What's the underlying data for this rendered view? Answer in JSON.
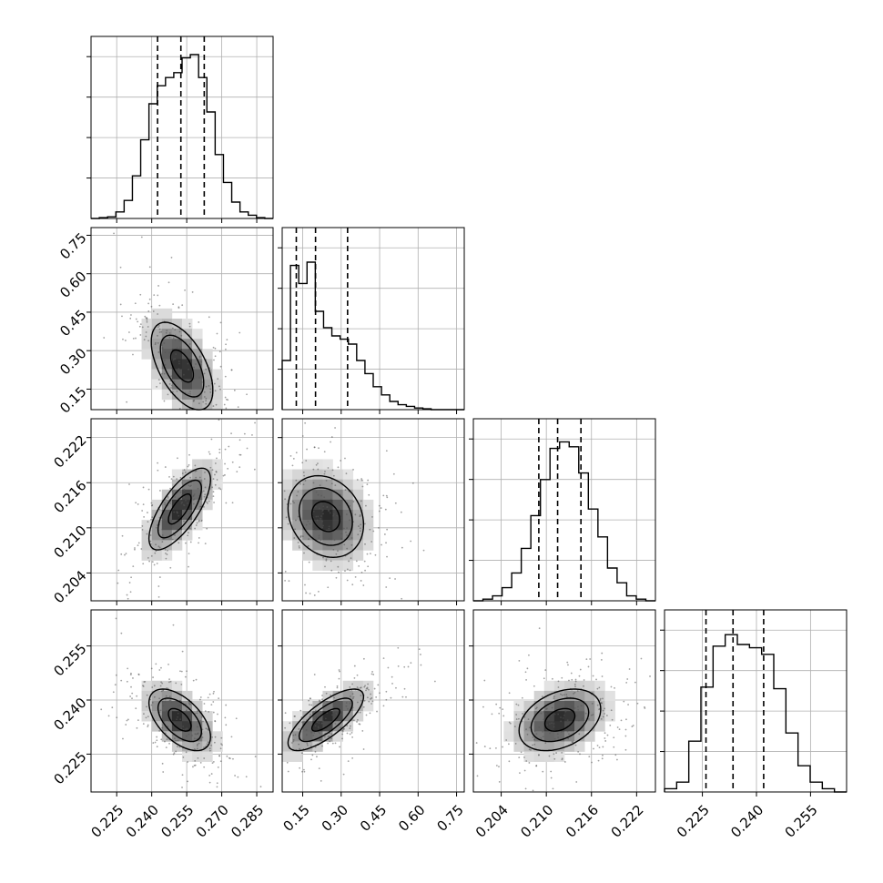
{
  "chart_data": {
    "type": "corner",
    "grid": true,
    "parameters": [
      {
        "range": [
          0.214,
          0.292
        ],
        "ticks": [
          0.225,
          0.24,
          0.255,
          0.27,
          0.285
        ],
        "tick_labels": [
          "0.225",
          "0.240",
          "0.255",
          "0.270",
          "0.285"
        ],
        "quantiles": [
          0.2425,
          0.2525,
          0.2625
        ],
        "hist_bins": [
          0.0,
          0.005,
          0.01,
          0.04,
          0.11,
          0.26,
          0.48,
          0.7,
          0.81,
          0.86,
          0.89,
          0.98,
          1.0,
          0.86,
          0.65,
          0.39,
          0.22,
          0.1,
          0.04,
          0.02,
          0.005,
          0.0
        ]
      },
      {
        "range": [
          0.07,
          0.78
        ],
        "ticks": [
          0.15,
          0.3,
          0.45,
          0.6,
          0.75
        ],
        "tick_labels": [
          "0.15",
          "0.30",
          "0.45",
          "0.60",
          "0.75"
        ],
        "quantiles": [
          0.125,
          0.2,
          0.325
        ],
        "hist_bins": [
          0.3,
          0.88,
          0.77,
          0.9,
          0.6,
          0.5,
          0.45,
          0.43,
          0.4,
          0.3,
          0.22,
          0.14,
          0.09,
          0.05,
          0.03,
          0.02,
          0.01,
          0.005,
          0.0,
          0.0,
          0.0,
          0.0
        ]
      },
      {
        "range": [
          0.2003,
          0.2245
        ],
        "ticks": [
          0.204,
          0.21,
          0.216,
          0.222
        ],
        "tick_labels": [
          "0.204",
          "0.210",
          "0.216",
          "0.222"
        ],
        "quantiles": [
          0.209,
          0.2115,
          0.2146
        ],
        "hist_bins": [
          0.0,
          0.01,
          0.03,
          0.08,
          0.17,
          0.32,
          0.52,
          0.74,
          0.93,
          0.97,
          0.94,
          0.78,
          0.56,
          0.39,
          0.2,
          0.11,
          0.03,
          0.01,
          0.0
        ]
      },
      {
        "range": [
          0.2145,
          0.265
        ],
        "ticks": [
          0.225,
          0.24,
          0.255
        ],
        "tick_labels": [
          "0.225",
          "0.240",
          "0.255"
        ],
        "quantiles": [
          0.226,
          0.2335,
          0.242
        ],
        "hist_bins": [
          0.02,
          0.06,
          0.31,
          0.64,
          0.89,
          0.96,
          0.9,
          0.88,
          0.84,
          0.63,
          0.36,
          0.16,
          0.06,
          0.02,
          0.0
        ]
      }
    ],
    "joint": [
      {
        "x": 0,
        "y": 1,
        "center": [
          0.253,
          0.24
        ],
        "sx": 0.0085,
        "sy": 0.11,
        "rho": -0.55,
        "levels": [
          0.85,
          0.55,
          0.3
        ]
      },
      {
        "x": 0,
        "y": 2,
        "center": [
          0.252,
          0.2125
        ],
        "sx": 0.0085,
        "sy": 0.0035,
        "rho": 0.72,
        "levels": [
          0.85,
          0.55,
          0.3
        ]
      },
      {
        "x": 1,
        "y": 2,
        "center": [
          0.24,
          0.2115
        ],
        "sx": 0.095,
        "sy": 0.0035,
        "rho": -0.2,
        "levels": [
          0.85,
          0.55,
          0.3
        ]
      },
      {
        "x": 0,
        "y": 3,
        "center": [
          0.252,
          0.2345
        ],
        "sx": 0.0085,
        "sy": 0.0055,
        "rho": -0.55,
        "levels": [
          0.85,
          0.55,
          0.3
        ]
      },
      {
        "x": 1,
        "y": 3,
        "center": [
          0.24,
          0.2345
        ],
        "sx": 0.095,
        "sy": 0.0055,
        "rho": 0.75,
        "levels": [
          0.85,
          0.55,
          0.3
        ]
      },
      {
        "x": 2,
        "y": 3,
        "center": [
          0.2118,
          0.2345
        ],
        "sx": 0.0035,
        "sy": 0.0055,
        "rho": 0.35,
        "levels": [
          0.85,
          0.55,
          0.3
        ]
      }
    ]
  }
}
